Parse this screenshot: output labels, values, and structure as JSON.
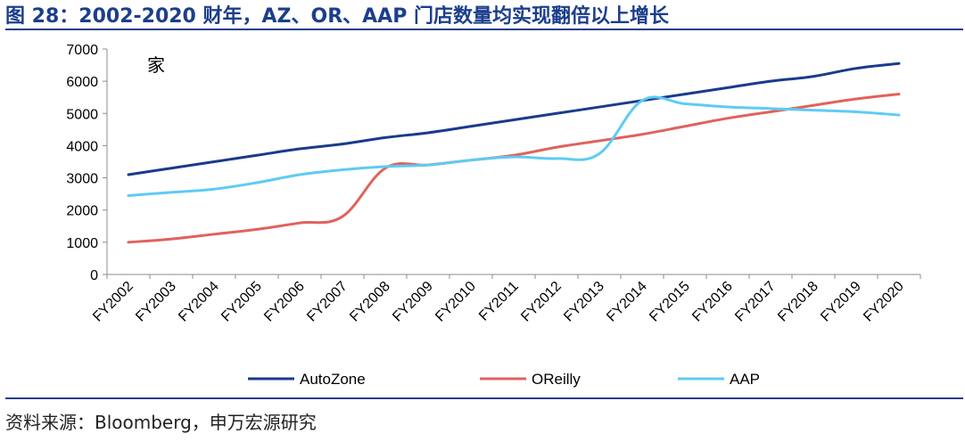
{
  "title": "图 28：2002-2020 财年，AZ、OR、AAP 门店数量均实现翻倍以上增长",
  "source": "资料来源：Bloomberg，申万宏源研究",
  "chart_data": {
    "type": "line",
    "unit_label": "家",
    "categories": [
      "FY2002",
      "FY2003",
      "FY2004",
      "FY2005",
      "FY2006",
      "FY2007",
      "FY2008",
      "FY2009",
      "FY2010",
      "FY2011",
      "FY2012",
      "FY2013",
      "FY2014",
      "FY2015",
      "FY2016",
      "FY2017",
      "FY2018",
      "FY2019",
      "FY2020"
    ],
    "ylim": [
      0,
      7000
    ],
    "yticks": [
      0,
      1000,
      2000,
      3000,
      4000,
      5000,
      6000,
      7000
    ],
    "legend_position": "bottom",
    "series": [
      {
        "name": "AutoZone",
        "color": "#1a3a8c",
        "values": [
          3100,
          3300,
          3500,
          3700,
          3900,
          4050,
          4250,
          4400,
          4600,
          4800,
          5000,
          5200,
          5400,
          5600,
          5800,
          6000,
          6150,
          6400,
          6550
        ]
      },
      {
        "name": "OReilly",
        "color": "#e0625c",
        "values": [
          1000,
          1100,
          1250,
          1400,
          1600,
          1800,
          3300,
          3400,
          3550,
          3700,
          3950,
          4150,
          4350,
          4600,
          4850,
          5050,
          5250,
          5450,
          5600
        ]
      },
      {
        "name": "AAP",
        "color": "#5ecbf5",
        "values": [
          2450,
          2550,
          2650,
          2850,
          3100,
          3250,
          3350,
          3400,
          3550,
          3650,
          3600,
          3750,
          5400,
          5300,
          5200,
          5150,
          5100,
          5050,
          4950
        ]
      }
    ]
  }
}
